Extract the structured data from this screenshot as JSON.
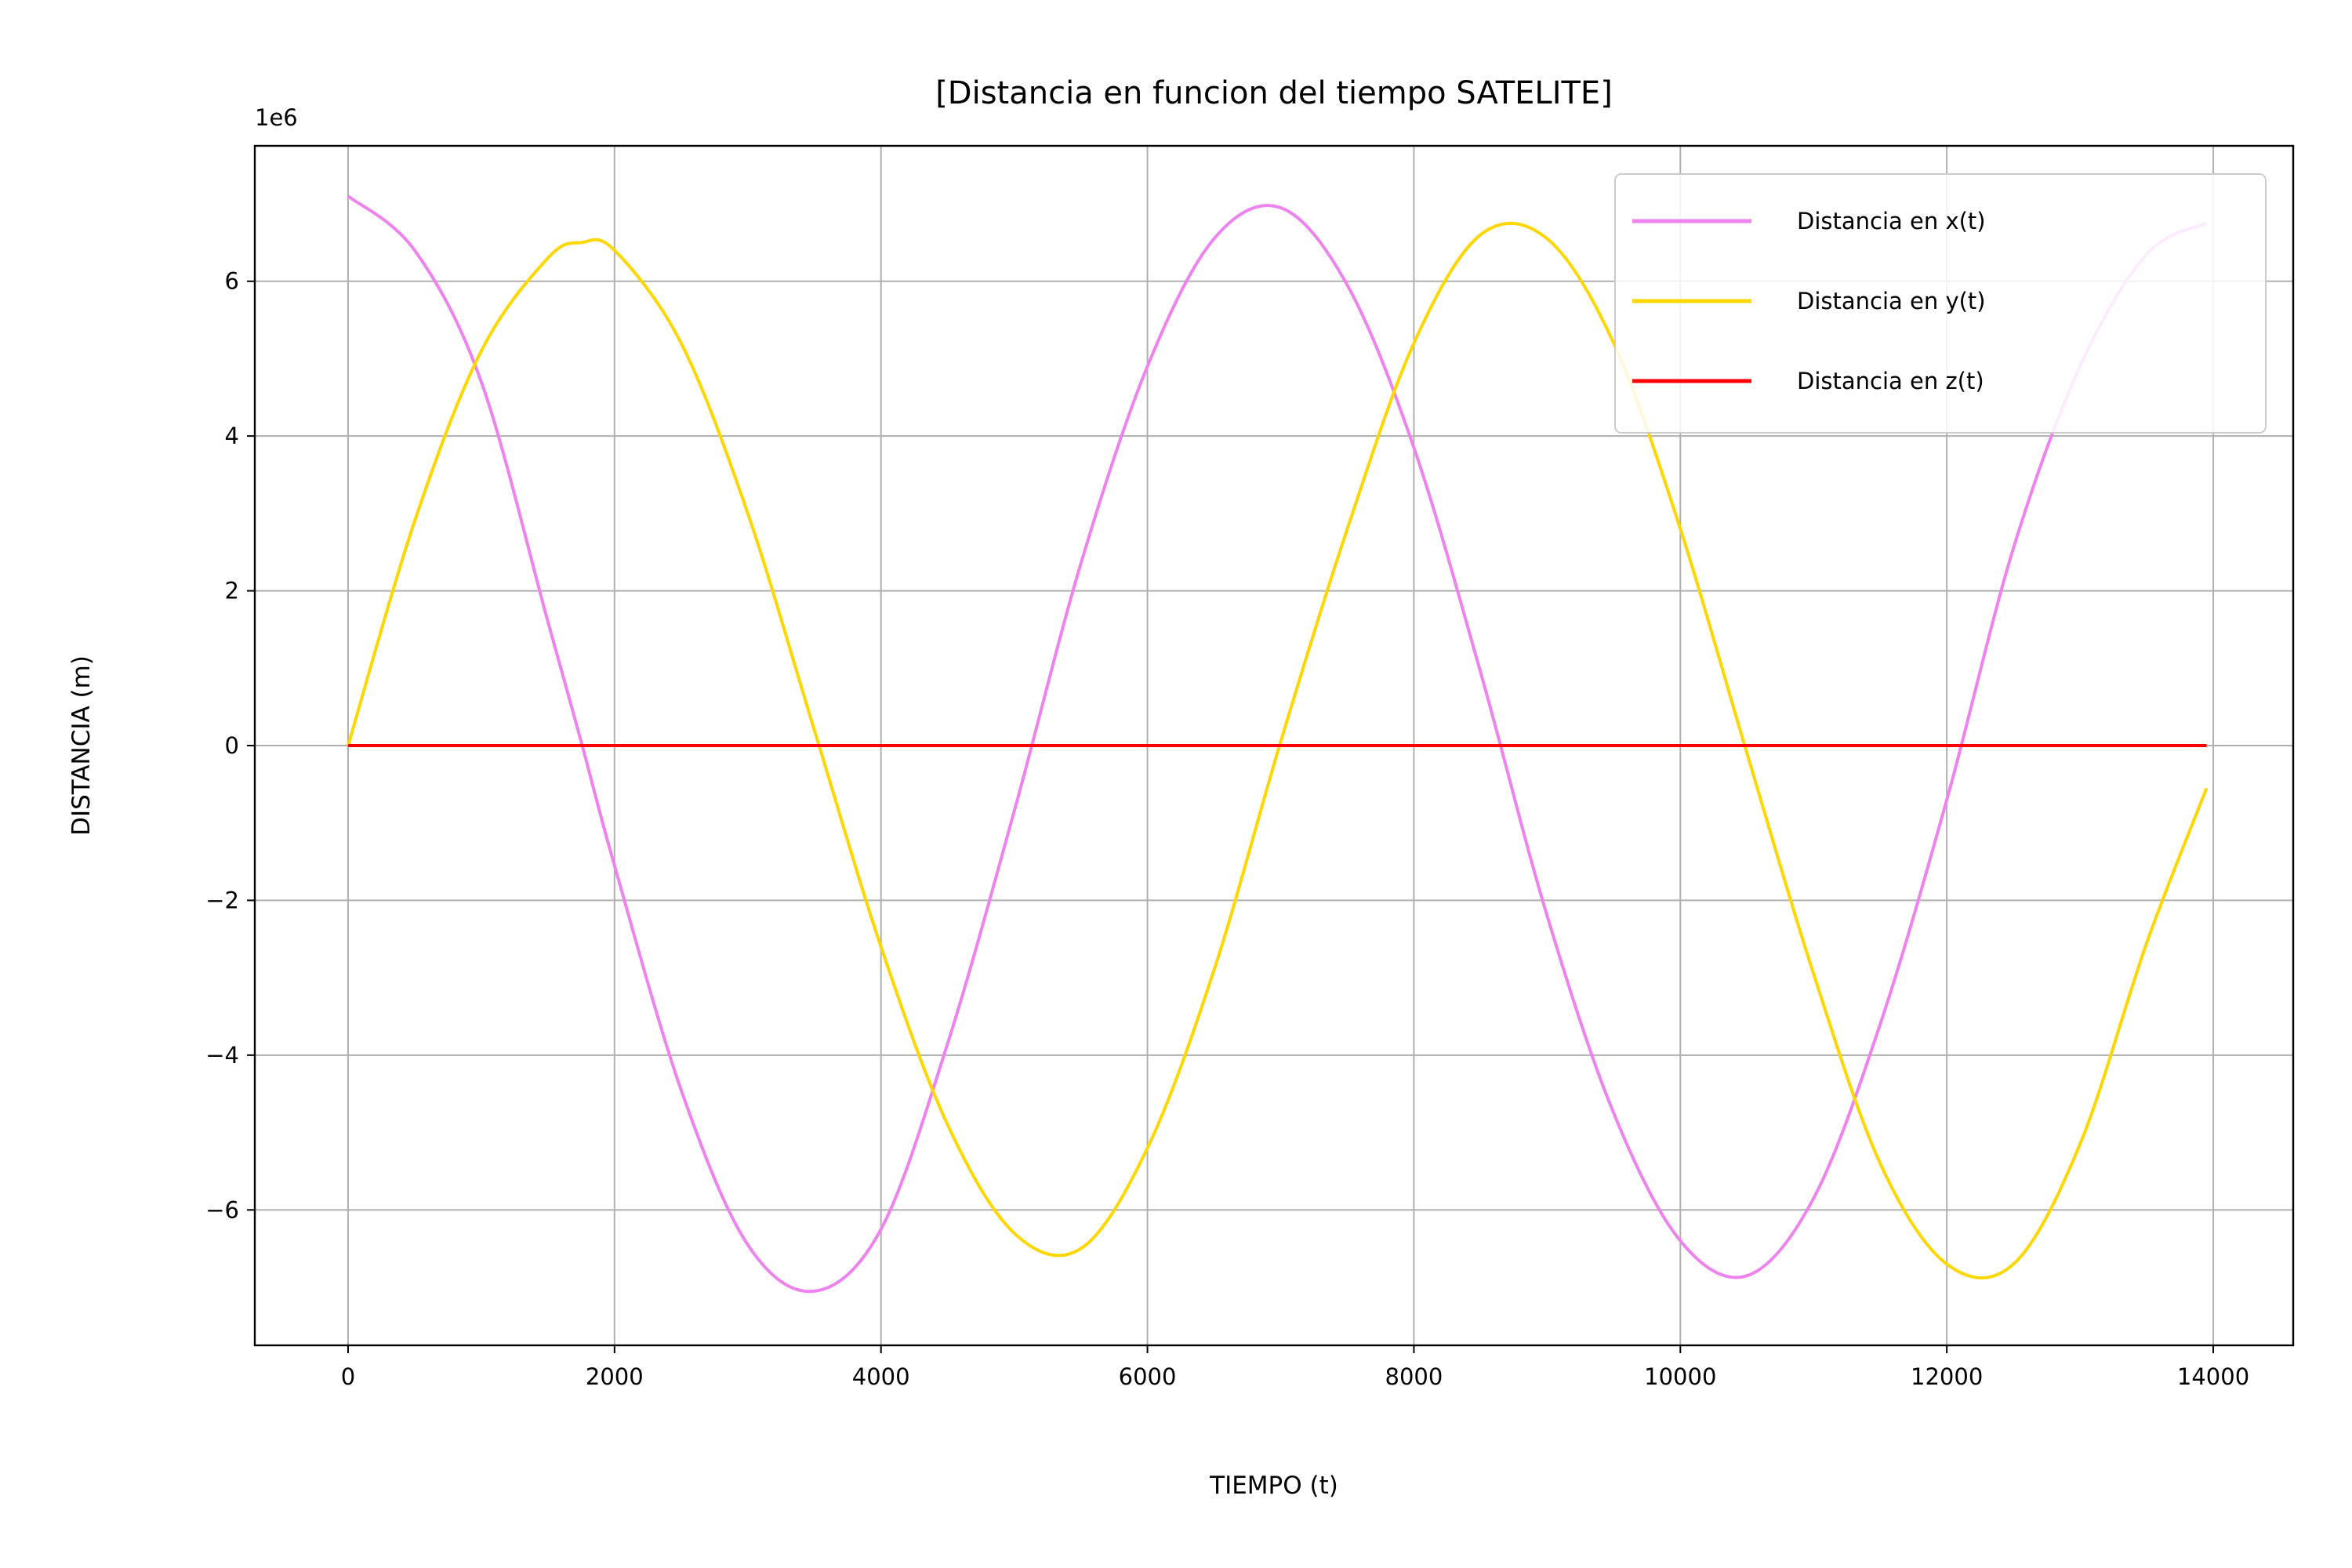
{
  "chart_data": {
    "type": "line",
    "title": "[Distancia en funcion del tiempo SATELITE]",
    "xlabel": "TIEMPO (t)",
    "ylabel": "DISTANCIA (m)",
    "y_offset_label": "1e6",
    "xlim": [
      -700,
      14600
    ],
    "ylim": [
      -7.75,
      7.75
    ],
    "x_ticks": [
      0,
      2000,
      4000,
      6000,
      8000,
      10000,
      12000,
      14000
    ],
    "x_tick_labels": [
      "0",
      "2000",
      "4000",
      "6000",
      "8000",
      "10000",
      "12000",
      "14000"
    ],
    "y_ticks": [
      -6,
      -4,
      -2,
      0,
      2,
      4,
      6
    ],
    "y_tick_labels": [
      "−6",
      "−4",
      "−2",
      "0",
      "2",
      "4",
      "6"
    ],
    "grid": true,
    "legend_position": "top-right",
    "x": [
      0,
      500,
      1000,
      1500,
      1750,
      2000,
      2500,
      3000,
      3500,
      4000,
      4500,
      5000,
      5500,
      6000,
      6500,
      7000,
      7500,
      8000,
      8500,
      9000,
      9500,
      10000,
      10500,
      11000,
      11500,
      12000,
      12500,
      13000,
      13500,
      13950
    ],
    "series": [
      {
        "name": "Distancia en x(t)",
        "color": "#ee82ee",
        "values": [
          7.1,
          6.4,
          4.7,
          1.6,
          0.05,
          -1.55,
          -4.45,
          -6.45,
          -7.05,
          -6.25,
          -3.85,
          -0.85,
          2.35,
          4.9,
          6.55,
          6.95,
          5.95,
          3.85,
          0.95,
          -2.2,
          -4.75,
          -6.4,
          -6.85,
          -5.85,
          -3.6,
          -0.7,
          2.55,
          4.9,
          6.35,
          6.75
        ]
      },
      {
        "name": "Distancia en y(t)",
        "color": "#ffd700",
        "values": [
          0.0,
          2.9,
          5.1,
          6.3,
          6.5,
          6.4,
          5.2,
          3.0,
          0.2,
          -2.6,
          -4.9,
          -6.3,
          -6.5,
          -5.2,
          -2.9,
          0.05,
          2.8,
          5.2,
          6.6,
          6.55,
          5.2,
          2.8,
          -0.1,
          -2.95,
          -5.4,
          -6.7,
          -6.7,
          -5.15,
          -2.55,
          -0.55
        ]
      },
      {
        "name": "Distancia en z(t)",
        "color": "#ff0000",
        "values": [
          0,
          0,
          0,
          0,
          0,
          0,
          0,
          0,
          0,
          0,
          0,
          0,
          0,
          0,
          0,
          0,
          0,
          0,
          0,
          0,
          0,
          0,
          0,
          0,
          0,
          0,
          0,
          0,
          0,
          0
        ]
      }
    ]
  }
}
